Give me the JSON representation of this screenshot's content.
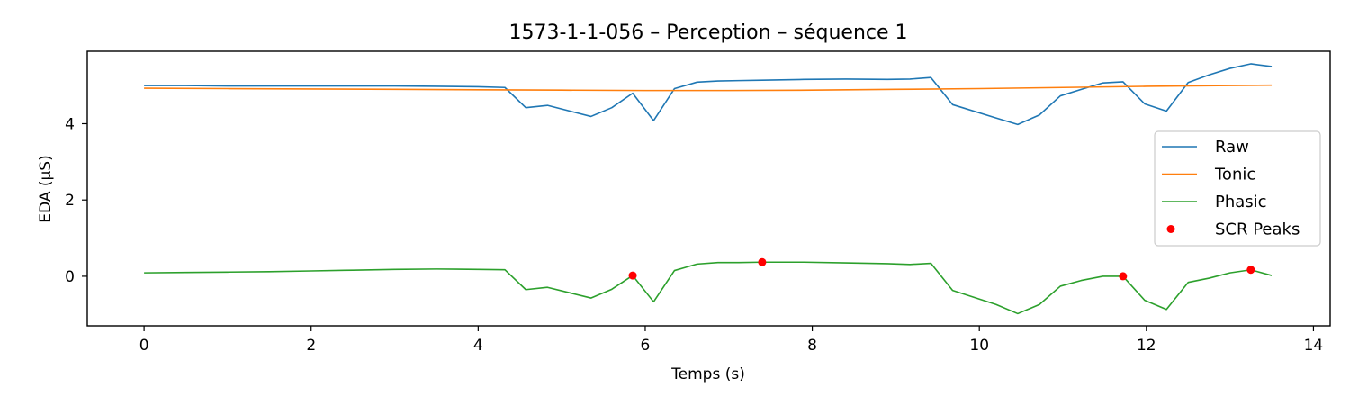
{
  "chart_data": {
    "type": "line",
    "title": "1573-1-1-056 – Perception – séquence 1",
    "xlabel": "Temps (s)",
    "ylabel": "EDA (µS)",
    "xlim": [
      -0.68,
      14.2
    ],
    "ylim": [
      -1.3,
      5.9
    ],
    "xticks": [
      0,
      2,
      4,
      6,
      8,
      10,
      12,
      14
    ],
    "yticks": [
      0,
      2,
      4
    ],
    "grid": false,
    "legend_position": "center-right",
    "series": [
      {
        "name": "Raw",
        "color": "#1f77b4",
        "x": [
          0,
          0.5,
          1,
          1.5,
          2,
          2.5,
          3,
          3.5,
          4,
          4.32,
          4.57,
          4.83,
          5.35,
          5.6,
          5.85,
          6.1,
          6.35,
          6.62,
          6.87,
          7.12,
          7.4,
          7.9,
          8.4,
          8.9,
          9.17,
          9.42,
          9.68,
          10.2,
          10.46,
          10.72,
          10.97,
          11.22,
          11.48,
          11.72,
          11.98,
          12.24,
          12.5,
          12.75,
          13.0,
          13.25,
          13.5
        ],
        "y": [
          5.0,
          5.0,
          4.99,
          4.99,
          4.99,
          4.99,
          4.99,
          4.98,
          4.97,
          4.95,
          4.42,
          4.48,
          4.19,
          4.42,
          4.8,
          4.08,
          4.92,
          5.09,
          5.12,
          5.13,
          5.14,
          5.16,
          5.17,
          5.16,
          5.17,
          5.21,
          4.5,
          4.15,
          3.98,
          4.23,
          4.73,
          4.9,
          5.07,
          5.1,
          4.52,
          4.33,
          5.08,
          5.28,
          5.45,
          5.57,
          5.5
        ]
      },
      {
        "name": "Tonic",
        "color": "#ff7f0e",
        "x": [
          0,
          1,
          2,
          3,
          4,
          5,
          6,
          7,
          8,
          9,
          10,
          11,
          12,
          13,
          13.5
        ],
        "y": [
          4.93,
          4.92,
          4.91,
          4.9,
          4.89,
          4.88,
          4.87,
          4.87,
          4.88,
          4.9,
          4.92,
          4.95,
          4.98,
          5.0,
          5.01
        ]
      },
      {
        "name": "Phasic",
        "color": "#2ca02c",
        "x": [
          0,
          0.5,
          1,
          1.5,
          2,
          2.5,
          3,
          3.5,
          4,
          4.32,
          4.57,
          4.83,
          5.35,
          5.6,
          5.85,
          6.1,
          6.35,
          6.62,
          6.87,
          7.12,
          7.4,
          7.9,
          8.4,
          8.9,
          9.17,
          9.42,
          9.68,
          10.2,
          10.46,
          10.72,
          10.97,
          11.22,
          11.48,
          11.72,
          11.98,
          12.24,
          12.5,
          12.75,
          13.0,
          13.25,
          13.5
        ],
        "y": [
          0.09,
          0.1,
          0.11,
          0.12,
          0.14,
          0.16,
          0.18,
          0.19,
          0.18,
          0.17,
          -0.35,
          -0.29,
          -0.57,
          -0.34,
          0.02,
          -0.67,
          0.15,
          0.32,
          0.36,
          0.36,
          0.37,
          0.37,
          0.35,
          0.33,
          0.31,
          0.34,
          -0.37,
          -0.74,
          -0.98,
          -0.74,
          -0.26,
          -0.11,
          0.0,
          0.0,
          -0.63,
          -0.87,
          -0.16,
          -0.05,
          0.09,
          0.17,
          0.02
        ]
      }
    ],
    "peaks": {
      "name": "SCR Peaks",
      "color": "#ff0000",
      "x": [
        5.85,
        7.4,
        11.72,
        13.25
      ],
      "y": [
        0.02,
        0.37,
        0.0,
        0.17
      ]
    }
  }
}
